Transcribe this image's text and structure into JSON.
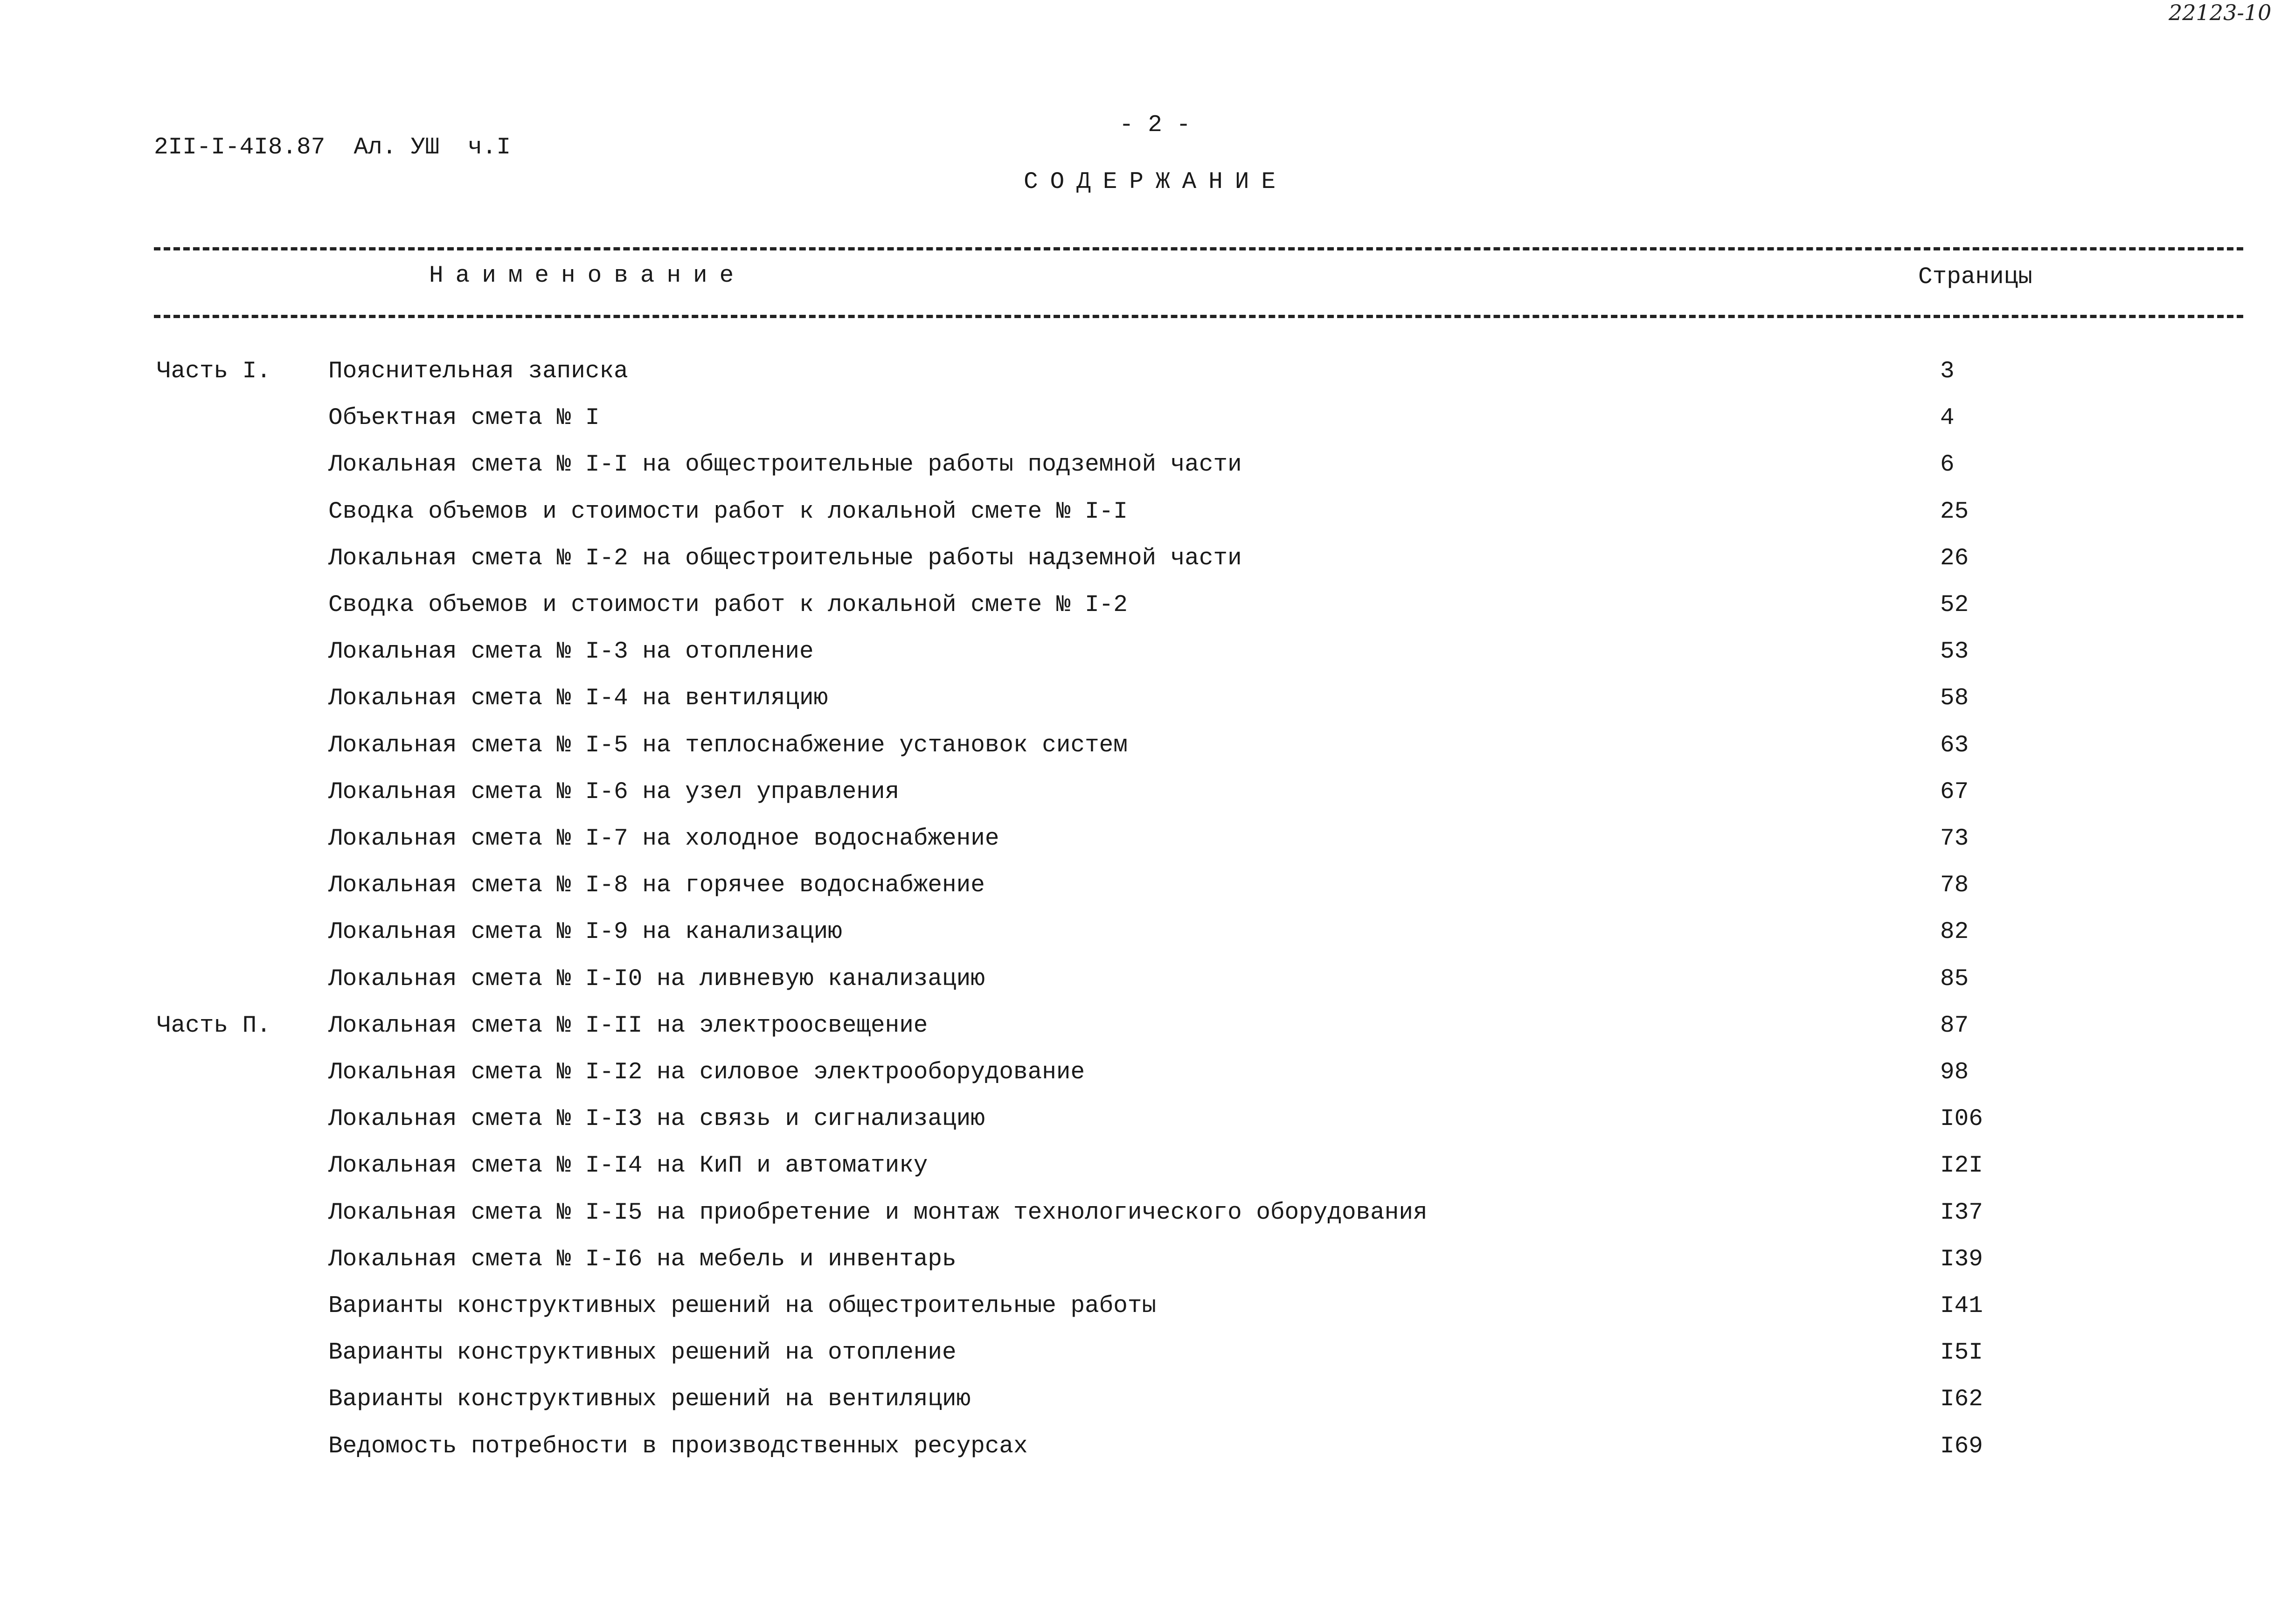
{
  "handwritten_note": "22123-10",
  "doc_code": "2II-I-4I8.87  Ал. УШ  ч.I",
  "page_number": "- 2 -",
  "title": "СОДЕРЖАНИЕ",
  "columns": {
    "name": "Наименование",
    "pages": "Страницы"
  },
  "rows": [
    {
      "part": "Часть I.",
      "name": "Пояснительная записка",
      "page": "3"
    },
    {
      "part": "",
      "name": "Объектная смета № I",
      "page": "4"
    },
    {
      "part": "",
      "name": "Локальная смета № I-I на общестроительные работы подземной части",
      "page": "6"
    },
    {
      "part": "",
      "name": "Сводка объемов и стоимости работ к локальной смете № I-I",
      "page": "25"
    },
    {
      "part": "",
      "name": "Локальная смета № I-2 на общестроительные работы надземной части",
      "page": "26"
    },
    {
      "part": "",
      "name": "Сводка объемов и стоимости работ к локальной смете № I-2",
      "page": "52"
    },
    {
      "part": "",
      "name": "Локальная смета № I-3 на отопление",
      "page": "53"
    },
    {
      "part": "",
      "name": "Локальная смета № I-4 на вентиляцию",
      "page": "58"
    },
    {
      "part": "",
      "name": "Локальная смета № I-5 на теплоснабжение установок систем",
      "page": "63"
    },
    {
      "part": "",
      "name": "Локальная смета № I-6 на узел управления",
      "page": "67"
    },
    {
      "part": "",
      "name": "Локальная смета № I-7 на холодное водоснабжение",
      "page": "73"
    },
    {
      "part": "",
      "name": "Локальная смета № I-8 на горячее водоснабжение",
      "page": "78"
    },
    {
      "part": "",
      "name": "Локальная смета № I-9 на канализацию",
      "page": "82"
    },
    {
      "part": "",
      "name": "Локальная смета № I-I0 на ливневую канализацию",
      "page": "85"
    },
    {
      "part": "Часть П.",
      "name": "Локальная смета № I-II на электроосвещение",
      "page": "87"
    },
    {
      "part": "",
      "name": "Локальная смета № I-I2 на силовое электрооборудование",
      "page": "98"
    },
    {
      "part": "",
      "name": "Локальная смета № I-I3 на связь и сигнализацию",
      "page": "I06"
    },
    {
      "part": "",
      "name": "Локальная смета № I-I4 на КиП и автоматику",
      "page": "I2I"
    },
    {
      "part": "",
      "name": "Локальная смета № I-I5 на приобретение и монтаж технологического оборудования",
      "page": "I37"
    },
    {
      "part": "",
      "name": "Локальная смета № I-I6 на мебель и инвентарь",
      "page": "I39"
    },
    {
      "part": "",
      "name": "Варианты конструктивных решений на общестроительные работы",
      "page": "I41"
    },
    {
      "part": "",
      "name": "Варианты конструктивных решений на отопление",
      "page": "I5I"
    },
    {
      "part": "",
      "name": "Варианты конструктивных решений на вентиляцию",
      "page": "I62"
    },
    {
      "part": "",
      "name": "Ведомость потребности в производственных ресурсах",
      "page": "I69"
    }
  ]
}
